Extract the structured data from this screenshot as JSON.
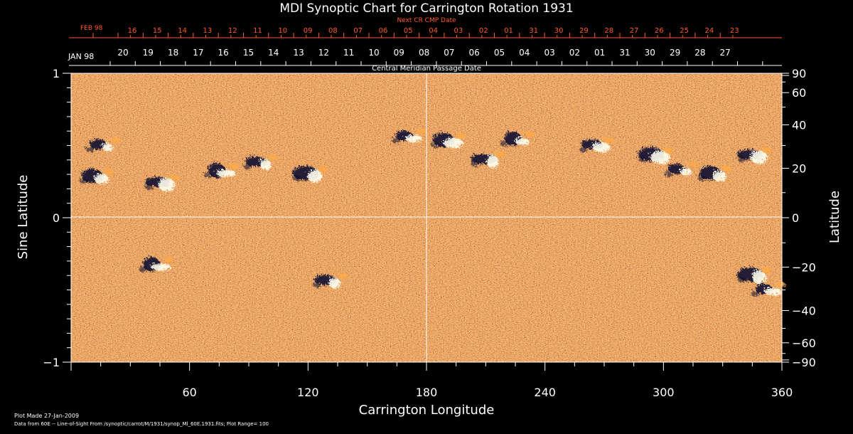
{
  "chart_data": {
    "type": "heatmap",
    "title": "MDI Synoptic Chart for Carrington Rotation 1931",
    "xlabel": "Carrington Longitude",
    "ylabel_left": "Sine Latitude",
    "ylabel_right": "Latitude",
    "xlim": [
      0,
      360
    ],
    "ylim": [
      -1,
      1
    ],
    "x_ticks": [
      60,
      120,
      180,
      240,
      300,
      360
    ],
    "y_ticks_left": [
      {
        "value": 1,
        "label": "1"
      },
      {
        "value": 0,
        "label": "0"
      },
      {
        "value": -1,
        "label": "−1"
      }
    ],
    "right_ticks_latitude": [
      {
        "lat": 90,
        "label": "90"
      },
      {
        "lat": 60,
        "label": "60"
      },
      {
        "lat": 40,
        "label": "40"
      },
      {
        "lat": 20,
        "label": "20"
      },
      {
        "lat": 0,
        "label": "0"
      },
      {
        "lat": -20,
        "label": "−20"
      },
      {
        "lat": -40,
        "label": "−40"
      },
      {
        "lat": -60,
        "label": "−60"
      },
      {
        "lat": -90,
        "label": "−90"
      }
    ],
    "next_cr_label": "Next CR CMP Date",
    "next_cr_month": "FEB 98",
    "next_cr_dates": [
      "16",
      "15",
      "14",
      "13",
      "12",
      "11",
      "10",
      "09",
      "08",
      "07",
      "06",
      "05",
      "04",
      "03",
      "02",
      "01",
      "31",
      "30",
      "29",
      "28",
      "27",
      "26",
      "25",
      "24",
      "23"
    ],
    "cmp_label": "Central Meridian Passage Date",
    "cmp_month": "JAN 98",
    "cmp_dates": [
      "20",
      "19",
      "18",
      "17",
      "16",
      "15",
      "14",
      "13",
      "12",
      "11",
      "10",
      "09",
      "08",
      "07",
      "06",
      "05",
      "04",
      "03",
      "02",
      "01",
      "31",
      "30",
      "29",
      "28",
      "27"
    ],
    "active_regions": [
      {
        "lon": 15,
        "sinlat": 0.52
      },
      {
        "lon": 12,
        "sinlat": 0.3
      },
      {
        "lon": 45,
        "sinlat": 0.26
      },
      {
        "lon": 75,
        "sinlat": 0.34
      },
      {
        "lon": 95,
        "sinlat": 0.4
      },
      {
        "lon": 120,
        "sinlat": 0.32
      },
      {
        "lon": 170,
        "sinlat": 0.58
      },
      {
        "lon": 190,
        "sinlat": 0.55
      },
      {
        "lon": 210,
        "sinlat": 0.42
      },
      {
        "lon": 225,
        "sinlat": 0.56
      },
      {
        "lon": 265,
        "sinlat": 0.52
      },
      {
        "lon": 295,
        "sinlat": 0.45
      },
      {
        "lon": 308,
        "sinlat": 0.35
      },
      {
        "lon": 325,
        "sinlat": 0.32
      },
      {
        "lon": 345,
        "sinlat": 0.45
      },
      {
        "lon": 42,
        "sinlat": -0.31
      },
      {
        "lon": 130,
        "sinlat": -0.42
      },
      {
        "lon": 345,
        "sinlat": -0.38
      },
      {
        "lon": 352,
        "sinlat": -0.48
      }
    ],
    "colors": {
      "background": "#000000",
      "field_base": "#e8481a",
      "field_light": "#ffaa44",
      "field_dark": "#a81800",
      "negative_polarity": "#101030",
      "positive_polarity": "#fffff0",
      "axis": "#ffffff",
      "secondary_axis": "#ff5a28"
    }
  },
  "footer": {
    "line1": "Plot Made 27-Jan-2009",
    "line2": "Data from 60E -- Line-of-Sight From /synoptic/carrot/M/1931/synop_Ml_60E.1931.fits; Plot Range=  100"
  }
}
